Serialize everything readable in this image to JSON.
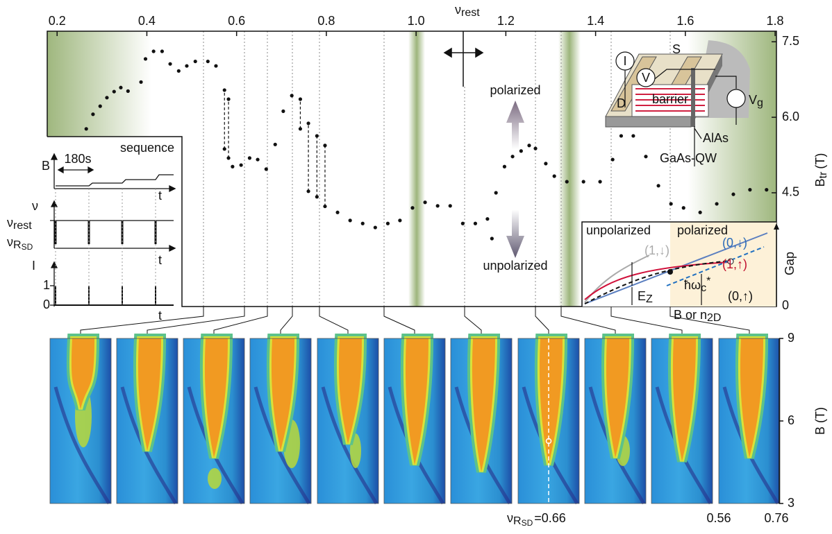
{
  "chart_data": {
    "type": "scatter",
    "x_label": "ν",
    "x_label_sub": "rest",
    "y_label": "B",
    "y_label_sub": "tr",
    "y_label_unit": "(T)",
    "annotations": [
      "polarized",
      "unpolarized"
    ],
    "color": "#111111",
    "x": [
      0.265,
      0.28,
      0.296,
      0.311,
      0.327,
      0.342,
      0.358,
      0.387,
      0.397,
      0.415,
      0.434,
      0.452,
      0.471,
      0.489,
      0.508,
      0.536,
      0.554,
      0.573,
      0.573,
      0.582,
      0.582,
      0.591,
      0.61,
      0.629,
      0.647,
      0.666,
      0.686,
      0.704,
      0.723,
      0.742,
      0.742,
      0.76,
      0.76,
      0.779,
      0.779,
      0.797,
      0.797,
      0.825,
      0.853,
      0.881,
      0.909,
      0.937,
      0.964,
      0.992,
      1.02,
      1.048,
      1.076,
      1.104,
      1.132,
      1.159,
      1.169,
      1.178,
      1.197,
      1.215,
      1.234,
      1.252,
      1.266,
      1.289,
      1.308,
      1.336,
      1.373,
      1.41,
      1.438,
      1.457,
      1.484,
      1.512,
      1.54,
      1.568,
      1.596,
      1.633,
      1.67,
      1.707,
      1.744,
      1.781
    ],
    "values": [
      5.77,
      6.06,
      6.22,
      6.39,
      6.51,
      6.59,
      6.52,
      6.7,
      7.16,
      7.31,
      7.31,
      7.06,
      6.92,
      7.02,
      7.11,
      7.11,
      7.02,
      6.54,
      5.37,
      6.36,
      5.19,
      5.02,
      5.05,
      5.19,
      5.16,
      4.97,
      5.46,
      6.12,
      6.43,
      6.36,
      5.77,
      5.88,
      4.53,
      5.63,
      4.42,
      5.44,
      4.23,
      4.11,
      3.95,
      3.89,
      3.81,
      3.89,
      3.95,
      4.2,
      4.31,
      4.24,
      4.24,
      3.89,
      3.89,
      3.98,
      3.59,
      4.5,
      5.02,
      5.22,
      5.33,
      5.44,
      5.38,
      5.08,
      4.83,
      4.72,
      4.72,
      4.72,
      5.16,
      5.63,
      5.63,
      5.22,
      4.64,
      4.28,
      4.2,
      4.11,
      4.28,
      4.47,
      4.56,
      4.56
    ],
    "xlim": [
      0.178,
      1.803
    ],
    "xticks": [
      0.2,
      0.4,
      0.6,
      0.8,
      {
        "value": 1,
        "label": "1.0"
      },
      1.2,
      1.4,
      1.6,
      1.8
    ],
    "ylim": [
      2.24,
      7.71
    ],
    "yticks": [
      4.5,
      {
        "value": 6,
        "label": "6.0"
      },
      7.5
    ]
  },
  "sequence": {
    "title": "sequence",
    "duration": "180s",
    "b_axis": "B",
    "nu_axis": "ν",
    "nu_rest": "ν",
    "nu_rest_sub": "rest",
    "nu_rsd": "ν",
    "nu_rsd_sub": "R",
    "nu_rsd_subsub": "SD",
    "i_axis": "I",
    "i_ticks": [
      0,
      1
    ],
    "t": "t"
  },
  "gap": {
    "left": "unpolarized",
    "right": "polarized",
    "y_label": "Gap",
    "zero": "0",
    "x_label": "B or n",
    "x_label_sub": "2D",
    "s1d": "(1,↓)",
    "s0d": "(0,↓)",
    "s1u": "(1,↑)",
    "s0u": "(0,↑)",
    "ez": "E",
    "ez_sub": "Z",
    "hw": "ħω",
    "hw_sub": "c",
    "hw_sup": "*"
  },
  "device": {
    "i": "I",
    "v": "V",
    "s": "S",
    "d": "D",
    "barrier": "barrier",
    "vg": "V",
    "vg_sub": "g",
    "alas": "AlAs",
    "gaas": "GaAs-QW"
  },
  "maps": {
    "y_label": "B (T)",
    "ylim": [
      3,
      9
    ],
    "yticks": [
      9,
      6,
      3
    ],
    "nu": "ν",
    "nu_sub": "R",
    "nu_subsub": "SD",
    "nu_value": "=0.66",
    "clim": [
      0.56,
      0.76
    ]
  }
}
